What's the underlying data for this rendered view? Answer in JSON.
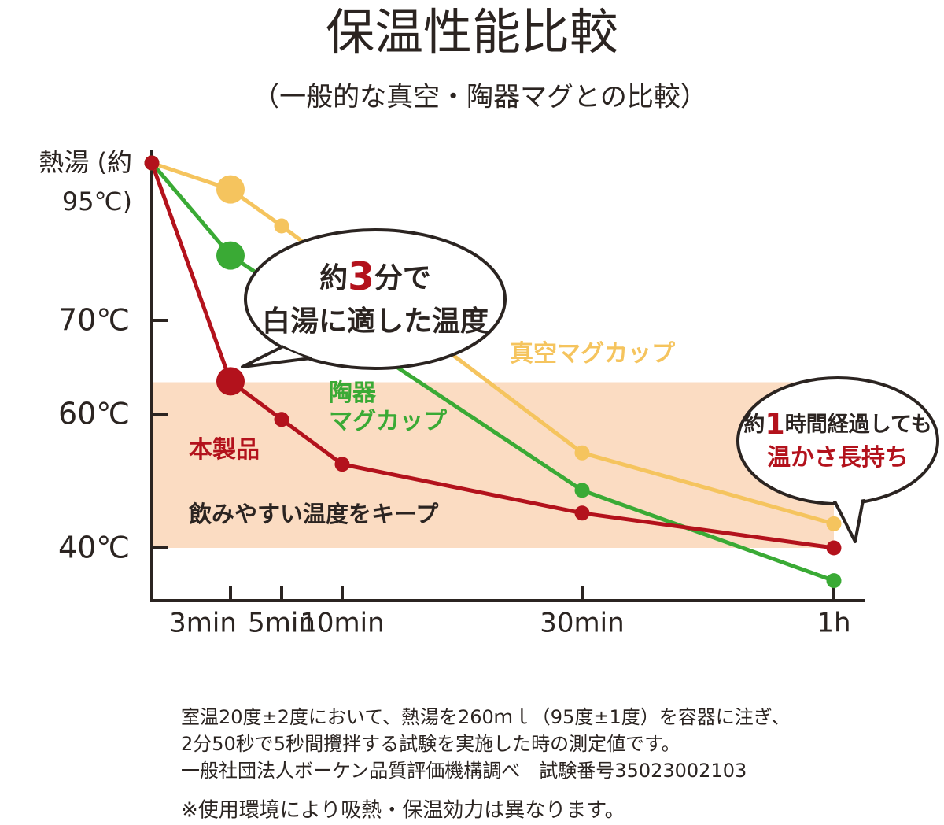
{
  "chart_data": {
    "type": "line",
    "title": "保温性能比較",
    "subtitle": "（一般的な真空・陶器マグとの比較）",
    "categories": [
      null,
      "3min",
      "5min",
      "10min",
      "30min",
      "1h"
    ],
    "yticks": [
      {
        "value": 95,
        "label": "熱湯 (約95℃)"
      },
      {
        "value": 70,
        "label": "70℃"
      },
      {
        "value": 60,
        "label": "60℃"
      },
      {
        "value": 40,
        "label": "40℃"
      }
    ],
    "series": [
      {
        "name": "真空マグカップ",
        "color": "#f5c45e",
        "values": [
          95,
          90.8,
          85,
          77.8,
          54.2,
          43.6
        ]
      },
      {
        "name": "陶器 マグカップ",
        "color": "#3aaa35",
        "values": [
          95,
          80.3,
          74.9,
          68.9,
          48.6,
          35.1
        ]
      },
      {
        "name": "本製品",
        "color": "#b3121c",
        "values": [
          95,
          63.5,
          59.2,
          52.5,
          45.2,
          40
        ]
      }
    ],
    "band": {
      "range": [
        40,
        63.4
      ],
      "label": "飲みやすい温度をキープ",
      "color": "#fbdcc2"
    },
    "callouts": [
      {
        "line1": [
          "約",
          "3",
          "分で"
        ],
        "line2": [
          "白湯に適した温度"
        ]
      },
      {
        "line1": [
          "約",
          "1",
          "時間経過しても"
        ],
        "line2": [
          "温かさ長持ち"
        ]
      }
    ],
    "notes": [
      "室温20度±2度において、熱湯を260ｍｌ（95度±1度）を容器に注ぎ、",
      "2分50秒で5秒間攪拌する試験を実施した時の測定値です。",
      "一般社団法人ボーケン品質評価機構調べ　試験番号35023002103",
      "※使用環境により吸熱・保温効力は異なります。"
    ]
  }
}
